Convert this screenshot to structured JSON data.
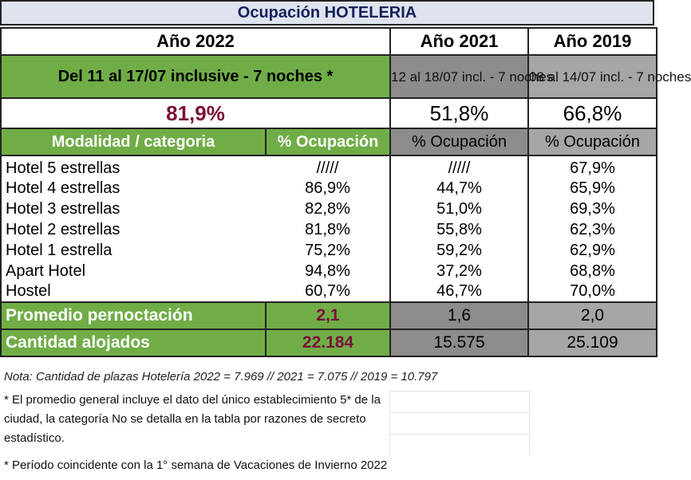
{
  "title": "Ocupación HOTELERIA",
  "years": {
    "y2022": "Año 2022",
    "y2021": "Año 2021",
    "y2019": "Año 2019"
  },
  "periods": {
    "p2022": "Del 11 al 17/07 inclusive - 7 noches *",
    "p2021": "12 al 18/07 incl. - 7 noches",
    "p2019": "08 al 14/07 incl. - 7 noches"
  },
  "totals": {
    "t2022": "81,9%",
    "t2021": "51,8%",
    "t2019": "66,8%"
  },
  "headers": {
    "modalidad": "Modalidad / categoria",
    "ocupacion": "% Ocupación"
  },
  "rows": [
    {
      "name": "Hotel 5 estrellas",
      "v2022": "/////",
      "v2021": "/////",
      "v2019": "67,9%"
    },
    {
      "name": "Hotel 4 estrellas",
      "v2022": "86,9%",
      "v2021": "44,7%",
      "v2019": "65,9%"
    },
    {
      "name": "Hotel 3 estrellas",
      "v2022": "82,8%",
      "v2021": "51,0%",
      "v2019": "69,3%"
    },
    {
      "name": "Hotel 2 estrellas",
      "v2022": "81,8%",
      "v2021": "55,8%",
      "v2019": "62,3%"
    },
    {
      "name": "Hotel 1 estrella",
      "v2022": "75,2%",
      "v2021": "59,2%",
      "v2019": "62,9%"
    },
    {
      "name": "Apart Hotel",
      "v2022": "94,8%",
      "v2021": "37,2%",
      "v2019": "68,8%"
    },
    {
      "name": "Hostel",
      "v2022": "60,7%",
      "v2021": "46,7%",
      "v2019": "70,0%"
    }
  ],
  "promedio": {
    "label": "Promedio pernoctación",
    "v2022": "2,1",
    "v2021": "1,6",
    "v2019": "2,0"
  },
  "alojados": {
    "label": "Cantidad alojados",
    "v2022": "22.184",
    "v2021": "15.575",
    "v2019": "25.109"
  },
  "note": "Nota: Cantidad de plazas Hotelería 2022 = 7.969  //   2021 = 7.075  // 2019 = 10.797",
  "footnote1": "* El promedio general incluye el dato del único establecimiento 5* de la ciudad, la categoría No se detalla en la tabla por razones de secreto estadístico.",
  "footnote2": "* Período coincidente con la 1° semana de Vacaciones de Invierno 2022",
  "colors": {
    "green": "#70ad47",
    "dark_gray": "#8c8c8c",
    "light_gray": "#a6a6a6",
    "highlight": "#7a0f3a",
    "title_text": "#14205a"
  }
}
